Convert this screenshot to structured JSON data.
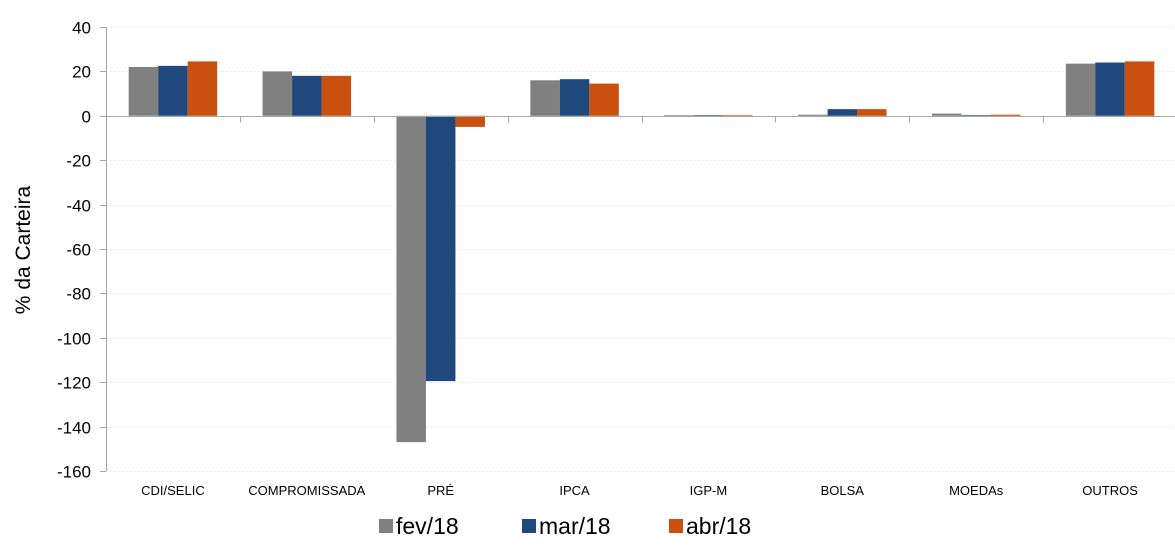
{
  "chart_data": {
    "type": "bar",
    "title": "",
    "xlabel": "",
    "ylabel": "% da Carteira",
    "ylim": [
      -160,
      40
    ],
    "yticks": [
      40,
      20,
      0,
      -20,
      -40,
      -60,
      -80,
      -100,
      -120,
      -140,
      -160
    ],
    "grid": true,
    "legend_position": "bottom",
    "categories": [
      "CDI/SELIC",
      "COMPROMISSADA",
      "PRÉ",
      "IPCA",
      "IGP-M",
      "BOLSA",
      "MOEDAs",
      "OUTROS"
    ],
    "series": [
      {
        "name": "fev/18",
        "color": "#808080",
        "values": [
          22,
          20,
          -147,
          16,
          0.2,
          0.5,
          1,
          23.5
        ]
      },
      {
        "name": "mar/18",
        "color": "#1f497d",
        "values": [
          22.5,
          18,
          -119.5,
          16.5,
          0.2,
          3,
          0.2,
          24
        ]
      },
      {
        "name": "abr/18",
        "color": "#c9500f",
        "values": [
          24.5,
          18,
          -5,
          14.5,
          0.2,
          3,
          0.5,
          24.5
        ]
      }
    ]
  }
}
